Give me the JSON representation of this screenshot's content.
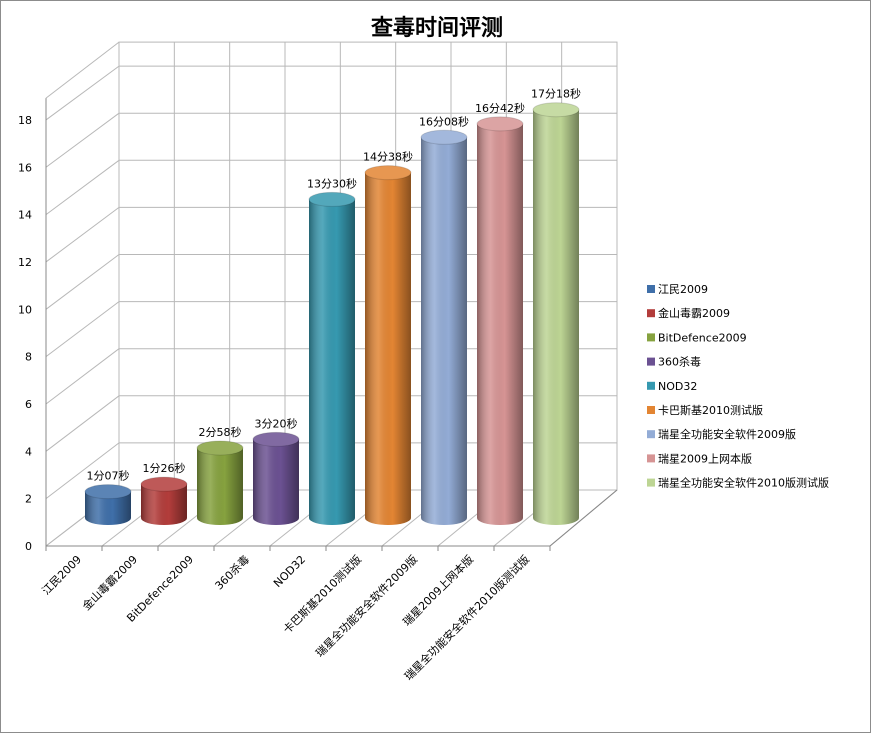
{
  "chart_data": {
    "type": "bar",
    "style": "3d-cylinder",
    "title": "查毒时间评测",
    "xlabel": "",
    "ylabel": "",
    "ylim": [
      0,
      20
    ],
    "yticks": [
      0,
      2,
      4,
      6,
      8,
      10,
      12,
      14,
      16,
      18
    ],
    "grid": true,
    "legend_position": "right",
    "categories": [
      "江民2009",
      "金山毒霸2009",
      "BitDefence2009",
      "360杀毒",
      "NOD32",
      "卡巴斯基2010测试版",
      "瑞星全功能安全软件2009版",
      "瑞星2009上网本版",
      "瑞星全功能安全软件2010版测试版"
    ],
    "values": [
      1.117,
      1.433,
      2.967,
      3.333,
      13.5,
      14.633,
      16.133,
      16.7,
      17.3
    ],
    "data_labels": [
      "1分07秒",
      "1分26秒",
      "2分58秒",
      "3分20秒",
      "13分30秒",
      "14分38秒",
      "16分08秒",
      "16分42秒",
      "17分18秒"
    ],
    "colors": [
      "#3f6fa9",
      "#b33d3b",
      "#86a23f",
      "#6b5192",
      "#3699b0",
      "#e38533",
      "#93acd6",
      "#d69494",
      "#bdd594"
    ]
  }
}
